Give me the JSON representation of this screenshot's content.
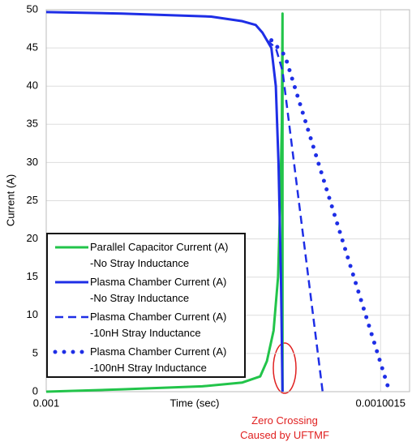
{
  "chart_data": {
    "type": "line",
    "ylabel": "Current (A)",
    "xlabel": "Time (sec)",
    "xlim": [
      0.001,
      0.00100163
    ],
    "xticks": [
      0.001,
      0.0010015
    ],
    "ylim": [
      0,
      50
    ],
    "yticks": [
      0,
      5,
      10,
      15,
      20,
      25,
      30,
      35,
      40,
      45,
      50
    ],
    "grid": true,
    "annotation": "Zero Crossing\nCaused by UFTMF",
    "series": [
      {
        "name": "Parallel Capacitor Current (A)\n-No Stray Inductance",
        "color": "#22c44a",
        "style": "solid",
        "x": [
          0.001,
          0.00100034,
          0.0010007,
          0.00100088,
          0.00100096,
          0.00100099,
          0.00100102,
          0.00100104,
          0.00100105,
          0.001001057,
          0.00100106,
          0.00100106
        ],
        "values": [
          0,
          0.3,
          0.7,
          1.2,
          2,
          4,
          8,
          15,
          25,
          35,
          49.5,
          0
        ]
      },
      {
        "name": "Plasma Chamber Current (A)\n-No Stray Inductance",
        "color": "#1e2ee6",
        "style": "solid",
        "x": [
          0.001,
          0.00100034,
          0.00100074,
          0.00100088,
          0.00100094,
          0.00100097,
          0.00100101,
          0.00100103,
          0.001001042,
          0.001001053,
          0.00100106
        ],
        "values": [
          49.7,
          49.5,
          49.1,
          48.5,
          48,
          47,
          45,
          40,
          30,
          15,
          0
        ]
      },
      {
        "name": "Plasma Chamber Current (A)\n-10nH Stray Inductance",
        "color": "#1e2ee6",
        "style": "dashed",
        "x": [
          0.00100099,
          0.00100103,
          0.00100106,
          0.00100124
        ],
        "values": [
          46,
          45,
          42,
          0
        ]
      },
      {
        "name": "Plasma Chamber Current (A)\n-100nH Stray Inductance",
        "color": "#1e2ee6",
        "style": "dotted",
        "x": [
          0.00100101,
          0.001001071,
          0.00100154
        ],
        "values": [
          46,
          44,
          0
        ]
      }
    ]
  }
}
